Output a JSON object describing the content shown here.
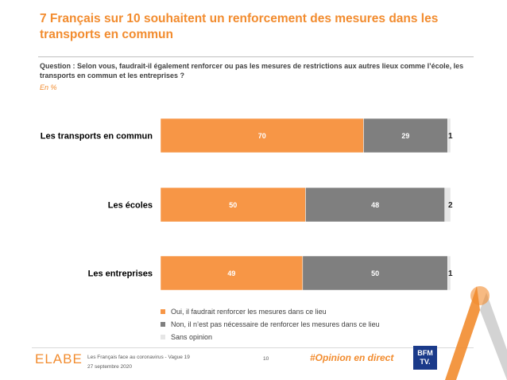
{
  "header": {
    "title": "7 Français sur 10 souhaitent un renforcement des mesures dans les transports en commun",
    "question": "Question : Selon vous, faudrait-il également renforcer ou pas les mesures de restrictions aux autres lieux comme l’école, les transports en commun et les entreprises ?",
    "unit": "En %"
  },
  "chart_data": {
    "type": "bar",
    "orientation": "horizontal",
    "stacked": true,
    "categories": [
      "Les transports en commun",
      "Les écoles",
      "Les entreprises"
    ],
    "series": [
      {
        "name": "Oui, il faudrait renforcer les mesures dans ce lieu",
        "values": [
          70,
          50,
          49
        ],
        "color": "#f79646"
      },
      {
        "name": "Non, il n’est pas nécessaire de renforcer les mesures dans ce lieu",
        "values": [
          29,
          48,
          50
        ],
        "color": "#7f7f7f"
      },
      {
        "name": "Sans opinion",
        "values": [
          1,
          2,
          1
        ],
        "color": "#e6e6e6"
      }
    ],
    "xlim": [
      0,
      100
    ],
    "legend_position": "bottom"
  },
  "legend": {
    "items": [
      {
        "label": "Oui, il faudrait renforcer les mesures dans ce lieu",
        "color": "#f79646"
      },
      {
        "label": "Non, il n’est pas nécessaire de renforcer les mesures dans ce lieu",
        "color": "#7f7f7f"
      },
      {
        "label": "Sans opinion",
        "color": "#e6e6e6"
      }
    ]
  },
  "footer": {
    "logo": "ELABE",
    "survey": "Les Français face au coronavirus - Vague 19",
    "date": "27 septembre 2020",
    "page": "10",
    "hashtag": "#Opinion en direct",
    "partner_line1": "BFM",
    "partner_line2": "TV."
  }
}
